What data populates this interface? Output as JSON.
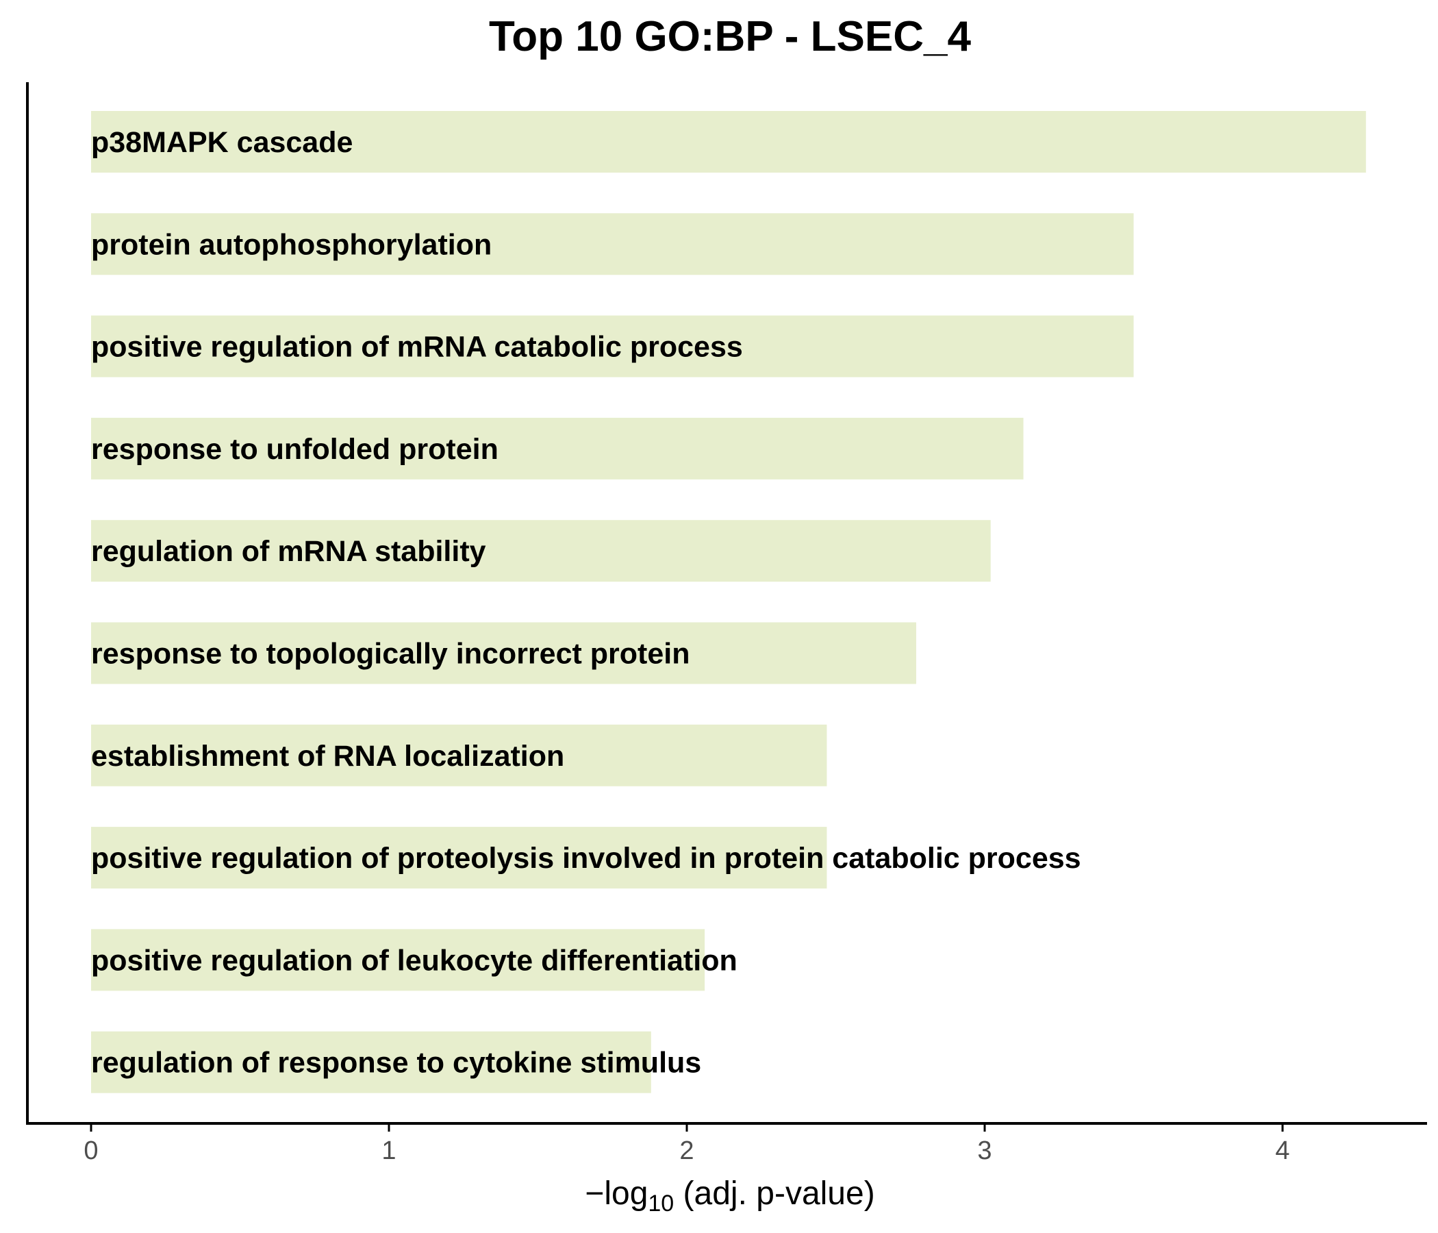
{
  "colors": {
    "bar": "#e7eecd",
    "axis": "#000000",
    "tick_label": "#4d4d4d"
  },
  "chart_data": {
    "type": "bar",
    "orientation": "horizontal",
    "title": "Top 10 GO:BP - LSEC_4",
    "xlabel": {
      "prefix": "−log",
      "subscript": "10",
      "suffix": " (adj. p-value)"
    },
    "ylabel": "",
    "xlim": [
      -0.21,
      4.5
    ],
    "xticks": [
      0,
      1,
      2,
      3,
      4
    ],
    "xtick_labels": [
      "0",
      "1",
      "2",
      "3",
      "4"
    ],
    "grid": false,
    "categories": [
      "p38MAPK cascade",
      "protein autophosphorylation",
      "positive regulation of mRNA catabolic process",
      "response to unfolded protein",
      "regulation of mRNA stability",
      "response to topologically incorrect protein",
      "establishment of RNA localization",
      "positive regulation of proteolysis involved in protein catabolic process",
      "positive regulation of leukocyte differentiation",
      "regulation of response to cytokine stimulus"
    ],
    "values": [
      4.28,
      3.5,
      3.5,
      3.13,
      3.02,
      2.77,
      2.47,
      2.47,
      2.06,
      1.88
    ]
  }
}
